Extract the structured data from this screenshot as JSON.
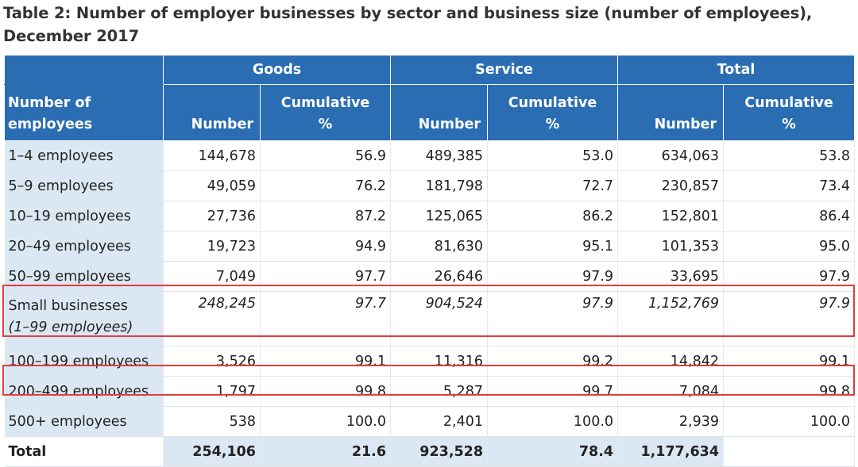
{
  "title": "Table 2: Number of employer businesses by sector and business size (number of employees), December 2017",
  "header": {
    "row_header": "Number of employees",
    "groups": [
      "Goods",
      "Service",
      "Total"
    ],
    "number_label": "Number",
    "cumulative_label_line1": "Cumulative",
    "cumulative_label_line2": "%"
  },
  "rows": [
    {
      "label": "1–4 employees",
      "g_num": "144,678",
      "g_cum": "56.9",
      "s_num": "489,385",
      "s_cum": "53.0",
      "t_num": "634,063",
      "t_cum": "53.8"
    },
    {
      "label": "5–9 employees",
      "g_num": "49,059",
      "g_cum": "76.2",
      "s_num": "181,798",
      "s_cum": "72.7",
      "t_num": "230,857",
      "t_cum": "73.4"
    },
    {
      "label": "10–19 employees",
      "g_num": "27,736",
      "g_cum": "87.2",
      "s_num": "125,065",
      "s_cum": "86.2",
      "t_num": "152,801",
      "t_cum": "86.4"
    },
    {
      "label": "20–49 employees",
      "g_num": "19,723",
      "g_cum": "94.9",
      "s_num": "81,630",
      "s_cum": "95.1",
      "t_num": "101,353",
      "t_cum": "95.0"
    },
    {
      "label": "50–99 employees",
      "g_num": "7,049",
      "g_cum": "97.7",
      "s_num": "26,646",
      "s_cum": "97.9",
      "t_num": "33,695",
      "t_cum": "97.9"
    }
  ],
  "small_row": {
    "label": "Small businesses",
    "sublabel": "(1–99 employees)",
    "g_num": "248,245",
    "g_cum": "97.7",
    "s_num": "904,524",
    "s_cum": "97.9",
    "t_num": "1,152,769",
    "t_cum": "97.9"
  },
  "rows2": [
    {
      "label": "100–199 employees",
      "g_num": "3,526",
      "g_cum": "99.1",
      "s_num": "11,316",
      "s_cum": "99.2",
      "t_num": "14,842",
      "t_cum": "99.1"
    },
    {
      "label": "200–499 employees",
      "g_num": "1,797",
      "g_cum": "99.8",
      "s_num": "5,287",
      "s_cum": "99.7",
      "t_num": "7,084",
      "t_cum": "99.8"
    },
    {
      "label": "500+ employees",
      "g_num": "538",
      "g_cum": "100.0",
      "s_num": "2,401",
      "s_cum": "100.0",
      "t_num": "2,939",
      "t_cum": "100.0"
    }
  ],
  "total_row": {
    "label": "Total",
    "g_num": "254,106",
    "g_cum": "21.6",
    "s_num": "923,528",
    "s_cum": "78.4",
    "t_num": "1,177,634",
    "t_cum": ""
  },
  "highlight_color": "#e03c3c"
}
